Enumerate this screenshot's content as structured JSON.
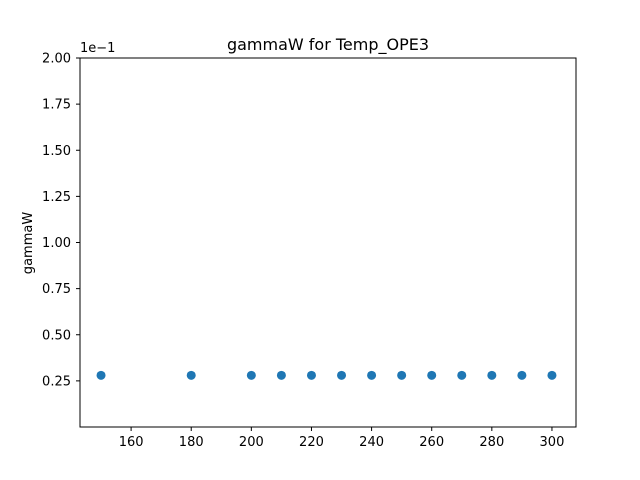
{
  "chart_data": {
    "type": "scatter",
    "title": "gammaW for Temp_OPE3",
    "xlabel": "",
    "ylabel": "gammaW",
    "y_offset_label": "1e−1",
    "xlim": [
      143,
      308
    ],
    "ylim": [
      0.0,
      2.0
    ],
    "y_plot_min": 0.0,
    "x_ticks": [
      160,
      180,
      200,
      220,
      240,
      260,
      280,
      300
    ],
    "x_tick_labels": [
      "160",
      "180",
      "200",
      "220",
      "240",
      "260",
      "280",
      "300"
    ],
    "y_ticks": [
      0.25,
      0.5,
      0.75,
      1.0,
      1.25,
      1.5,
      1.75,
      2.0
    ],
    "y_tick_labels": [
      "0.25",
      "0.50",
      "0.75",
      "1.00",
      "1.25",
      "1.50",
      "1.75",
      "2.00"
    ],
    "grid": false,
    "marker_color": "#1f77b4",
    "series": [
      {
        "x": [
          150,
          180,
          200,
          210,
          220,
          230,
          240,
          250,
          260,
          270,
          280,
          290,
          300
        ],
        "y": [
          0.28,
          0.28,
          0.28,
          0.28,
          0.28,
          0.28,
          0.28,
          0.28,
          0.28,
          0.28,
          0.28,
          0.28,
          0.28
        ]
      }
    ]
  }
}
